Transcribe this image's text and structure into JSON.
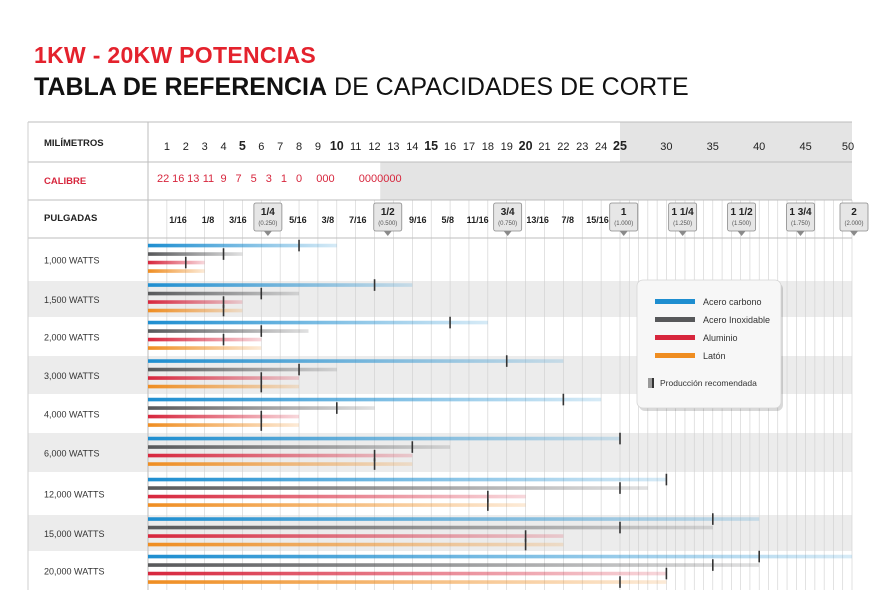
{
  "header": {
    "title_line1": "1KW - 20KW POTENCIAS",
    "title_line2_bold": "TABLA DE REFERENCIA",
    "title_line2_rest": " DE CAPACIDADES DE CORTE"
  },
  "colors": {
    "carbon": "#1e8ed0",
    "stainless": "#57585a",
    "aluminum": "#d7263d",
    "brass": "#ef8d21",
    "calibre_text": "#d7263d",
    "grid_light": "#cfcfcf",
    "band_dark": "#e4e4e4",
    "marker": "#333333"
  },
  "chart_data": {
    "type": "bar",
    "title": "TABLA DE REFERENCIA DE CAPACIDADES DE CORTE",
    "xunit": "mm",
    "xlim": [
      0,
      50
    ],
    "scale_break_mm": 25,
    "row_headers": {
      "mm": "MILÍMETROS",
      "calibre": "CALIBRE",
      "inches": "PULGADAS"
    },
    "mm_ticks": [
      {
        "label": "1",
        "mm": 1
      },
      {
        "label": "2",
        "mm": 2
      },
      {
        "label": "3",
        "mm": 3
      },
      {
        "label": "4",
        "mm": 4
      },
      {
        "label": "5",
        "mm": 5
      },
      {
        "label": "6",
        "mm": 6
      },
      {
        "label": "7",
        "mm": 7
      },
      {
        "label": "8",
        "mm": 8
      },
      {
        "label": "9",
        "mm": 9
      },
      {
        "label": "10",
        "mm": 10
      },
      {
        "label": "11",
        "mm": 11
      },
      {
        "label": "12",
        "mm": 12
      },
      {
        "label": "13",
        "mm": 13
      },
      {
        "label": "14",
        "mm": 14
      },
      {
        "label": "15",
        "mm": 15
      },
      {
        "label": "16",
        "mm": 16
      },
      {
        "label": "17",
        "mm": 17
      },
      {
        "label": "18",
        "mm": 18
      },
      {
        "label": "19",
        "mm": 19
      },
      {
        "label": "20",
        "mm": 20
      },
      {
        "label": "21",
        "mm": 21
      },
      {
        "label": "22",
        "mm": 22
      },
      {
        "label": "23",
        "mm": 23
      },
      {
        "label": "24",
        "mm": 24
      },
      {
        "label": "25",
        "mm": 25
      },
      {
        "label": "30",
        "mm": 30
      },
      {
        "label": "35",
        "mm": 35
      },
      {
        "label": "40",
        "mm": 40
      },
      {
        "label": "45",
        "mm": 45
      },
      {
        "label": "50",
        "mm": 50
      }
    ],
    "bold_mm_labels": [
      "5",
      "10",
      "15",
      "20",
      "25"
    ],
    "calibre_labels": [
      {
        "text": "22",
        "mm": 0.8
      },
      {
        "text": "16",
        "mm": 1.6
      },
      {
        "text": "13",
        "mm": 2.4
      },
      {
        "text": "11",
        "mm": 3.2
      },
      {
        "text": "9",
        "mm": 4.0
      },
      {
        "text": "7",
        "mm": 4.8
      },
      {
        "text": "5",
        "mm": 5.6
      },
      {
        "text": "3",
        "mm": 6.4
      },
      {
        "text": "1",
        "mm": 7.2
      },
      {
        "text": "0",
        "mm": 8.0
      },
      {
        "text": "000",
        "mm": 9.4
      },
      {
        "text": "0000000",
        "mm": 12.3
      }
    ],
    "inch_labels": [
      {
        "label": "1/16",
        "mm": 1.59
      },
      {
        "label": "1/8",
        "mm": 3.18
      },
      {
        "label": "3/16",
        "mm": 4.76
      },
      {
        "label": "5/16",
        "mm": 7.94
      },
      {
        "label": "3/8",
        "mm": 9.53
      },
      {
        "label": "7/16",
        "mm": 11.11
      },
      {
        "label": "9/16",
        "mm": 14.29
      },
      {
        "label": "5/8",
        "mm": 15.88
      },
      {
        "label": "11/16",
        "mm": 17.46
      },
      {
        "label": "13/16",
        "mm": 20.64
      },
      {
        "label": "7/8",
        "mm": 22.23
      },
      {
        "label": "15/16",
        "mm": 23.81
      }
    ],
    "inch_callouts": [
      {
        "label": "1/4",
        "sub": "(0.250)",
        "mm": 6.35
      },
      {
        "label": "1/2",
        "sub": "(0.500)",
        "mm": 12.7
      },
      {
        "label": "3/4",
        "sub": "(0.750)",
        "mm": 19.05
      },
      {
        "label": "1",
        "sub": "(1.000)",
        "mm": 25.4
      },
      {
        "label": "1 1/4",
        "sub": "(1.250)",
        "mm": 31.75
      },
      {
        "label": "1 1/2",
        "sub": "(1.500)",
        "mm": 38.1
      },
      {
        "label": "1 3/4",
        "sub": "(1.750)",
        "mm": 44.45
      },
      {
        "label": "2",
        "sub": "(2.000)",
        "mm": 50.8
      }
    ],
    "legend": [
      {
        "name": "Acero carbono",
        "color": "#1e8ed0"
      },
      {
        "name": "Acero Inoxidable",
        "color": "#57585a"
      },
      {
        "name": "Aluminio",
        "color": "#d7263d"
      },
      {
        "name": "Latón",
        "color": "#ef8d21"
      }
    ],
    "legend_marker_label": "Producción recomendada",
    "series_order": [
      "Acero carbono",
      "Acero Inoxidable",
      "Aluminio",
      "Latón"
    ],
    "rows": [
      {
        "label": "1,000 WATTS",
        "max": [
          10,
          5,
          3,
          3
        ],
        "rec": [
          8,
          4,
          2,
          null
        ]
      },
      {
        "label": "1,500 WATTS",
        "max": [
          14,
          8,
          5,
          5
        ],
        "rec": [
          12,
          6,
          4,
          4
        ]
      },
      {
        "label": "2,000 WATTS",
        "max": [
          18,
          8.5,
          6,
          6
        ],
        "rec": [
          16,
          6,
          4,
          null
        ]
      },
      {
        "label": "3,000 WATTS",
        "max": [
          22,
          10,
          8,
          8
        ],
        "rec": [
          19,
          8,
          6,
          6
        ]
      },
      {
        "label": "4,000 WATTS",
        "max": [
          24,
          12,
          8,
          8
        ],
        "rec": [
          22,
          10,
          6,
          6
        ]
      },
      {
        "label": "6,000 WATTS",
        "max": [
          25,
          16,
          14,
          14
        ],
        "rec": [
          25,
          14,
          12,
          12
        ]
      },
      {
        "label": "12,000 WATTS",
        "max": [
          30,
          28,
          20,
          20
        ],
        "rec": [
          30,
          25,
          18,
          18
        ]
      },
      {
        "label": "15,000 WATTS",
        "max": [
          40,
          35,
          22,
          22
        ],
        "rec": [
          35,
          25,
          20,
          20
        ]
      },
      {
        "label": "20,000 WATTS",
        "max": [
          50,
          40,
          30,
          30
        ],
        "rec": [
          40,
          35,
          30,
          25
        ]
      }
    ]
  }
}
